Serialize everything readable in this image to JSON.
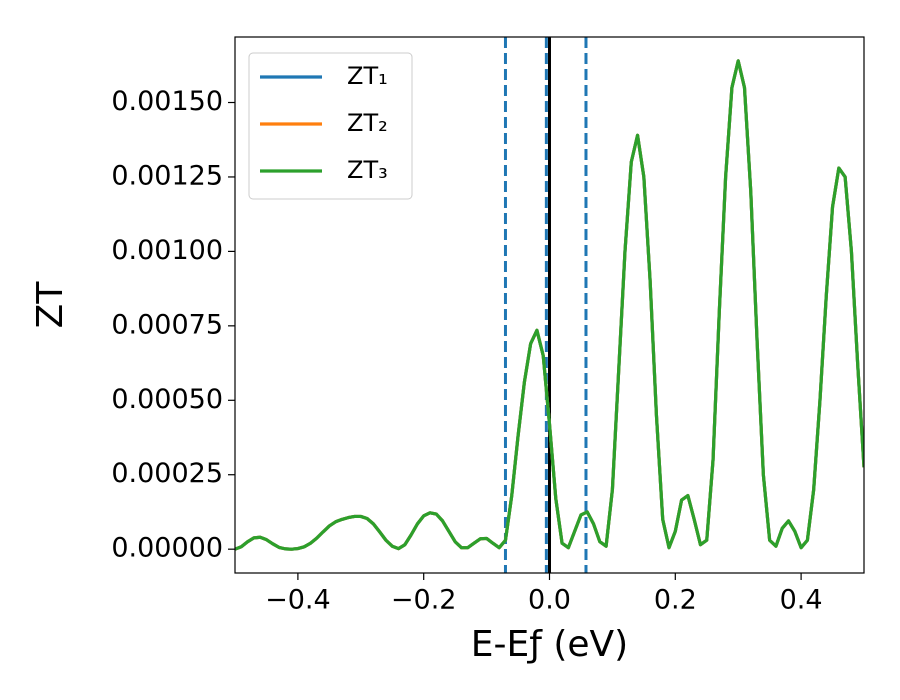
{
  "chart_data": {
    "type": "line",
    "xlabel": "E-Eƒ (eV)",
    "ylabel": "ZT",
    "xlim": [
      -0.5,
      0.5
    ],
    "ylim": [
      -8e-05,
      0.00172
    ],
    "xticks": [
      {
        "value": -0.4,
        "label": "−0.4"
      },
      {
        "value": -0.2,
        "label": "−0.2"
      },
      {
        "value": 0,
        "label": "0.0"
      },
      {
        "value": 0.2,
        "label": "0.2"
      },
      {
        "value": 0.4,
        "label": "0.4"
      }
    ],
    "yticks": [
      {
        "value": 0,
        "label": "0.00000"
      },
      {
        "value": 0.00025,
        "label": "0.00025"
      },
      {
        "value": 0.0005,
        "label": "0.00050"
      },
      {
        "value": 0.00075,
        "label": "0.00075"
      },
      {
        "value": 0.001,
        "label": "0.00100"
      },
      {
        "value": 0.00125,
        "label": "0.00125"
      },
      {
        "value": 0.0015,
        "label": "0.00150"
      }
    ],
    "legend": "upper left",
    "vlines": [
      {
        "x": -0.07,
        "color": "#1f77b4",
        "style": "dashed"
      },
      {
        "x": -0.005,
        "color": "#1f77b4",
        "style": "dashed"
      },
      {
        "x": 0.058,
        "color": "#1f77b4",
        "style": "dashed"
      },
      {
        "x": 0,
        "color": "#000000",
        "style": "solid"
      }
    ],
    "x": [
      -0.5,
      -0.49,
      -0.48,
      -0.47,
      -0.46,
      -0.45,
      -0.44,
      -0.43,
      -0.42,
      -0.41,
      -0.4,
      -0.39,
      -0.38,
      -0.37,
      -0.36,
      -0.35,
      -0.34,
      -0.33,
      -0.32,
      -0.31,
      -0.3,
      -0.29,
      -0.28,
      -0.27,
      -0.26,
      -0.25,
      -0.24,
      -0.23,
      -0.22,
      -0.21,
      -0.2,
      -0.19,
      -0.18,
      -0.17,
      -0.16,
      -0.15,
      -0.14,
      -0.13,
      -0.12,
      -0.11,
      -0.1,
      -0.09,
      -0.08,
      -0.07,
      -0.06,
      -0.05,
      -0.04,
      -0.03,
      -0.02,
      -0.01,
      0,
      0.01,
      0.02,
      0.03,
      0.04,
      0.05,
      0.06,
      0.07,
      0.08,
      0.09,
      0.1,
      0.11,
      0.12,
      0.13,
      0.14,
      0.15,
      0.16,
      0.17,
      0.18,
      0.19,
      0.2,
      0.21,
      0.22,
      0.23,
      0.24,
      0.25,
      0.26,
      0.27,
      0.28,
      0.29,
      0.3,
      0.31,
      0.32,
      0.33,
      0.34,
      0.35,
      0.36,
      0.37,
      0.38,
      0.39,
      0.4,
      0.41,
      0.42,
      0.43,
      0.44,
      0.45,
      0.46,
      0.47,
      0.48,
      0.49,
      0.5
    ],
    "series": [
      {
        "name": "ZT₁",
        "color": "#1f77b4",
        "values": [
          0,
          8e-06,
          2.5e-05,
          3.8e-05,
          4e-05,
          3.2e-05,
          1.8e-05,
          6e-06,
          1e-06,
          0,
          2e-06,
          8e-06,
          2e-05,
          3.7e-05,
          5.8e-05,
          7.8e-05,
          9.2e-05,
          0.0001,
          0.000106,
          0.00011,
          0.00011,
          0.000103,
          8.5e-05,
          5.8e-05,
          3e-05,
          1e-05,
          2e-06,
          1.5e-05,
          4.8e-05,
          8.5e-05,
          0.000112,
          0.000122,
          0.000118,
          9.5e-05,
          6e-05,
          2.5e-05,
          5e-06,
          5e-06,
          2e-05,
          3.5e-05,
          3.6e-05,
          2e-05,
          5e-06,
          3e-05,
          0.00018,
          0.00038,
          0.00056,
          0.00069,
          0.000735,
          0.00065,
          0.00042,
          0.00017,
          2e-05,
          5e-06,
          6e-05,
          0.000115,
          0.000125,
          8.5e-05,
          2.5e-05,
          1e-05,
          0.0002,
          0.0006,
          0.001,
          0.0013,
          0.00139,
          0.00125,
          0.0009,
          0.00045,
          0.0001,
          5e-06,
          6e-05,
          0.000165,
          0.00018,
          0.0001,
          1.5e-05,
          3e-05,
          0.0003,
          0.0008,
          0.00125,
          0.00155,
          0.00164,
          0.00155,
          0.0012,
          0.0007,
          0.00025,
          3e-05,
          1e-05,
          7e-05,
          9.5e-05,
          6e-05,
          5e-06,
          3e-05,
          0.0002,
          0.0005,
          0.00085,
          0.00115,
          0.00128,
          0.00125,
          0.001,
          0.00062,
          0.000275
        ]
      },
      {
        "name": "ZT₂",
        "color": "#ff7f0e",
        "values": [
          0,
          8e-06,
          2.5e-05,
          3.8e-05,
          4e-05,
          3.2e-05,
          1.8e-05,
          6e-06,
          1e-06,
          0,
          2e-06,
          8e-06,
          2e-05,
          3.7e-05,
          5.8e-05,
          7.8e-05,
          9.2e-05,
          0.0001,
          0.000106,
          0.00011,
          0.00011,
          0.000103,
          8.5e-05,
          5.8e-05,
          3e-05,
          1e-05,
          2e-06,
          1.5e-05,
          4.8e-05,
          8.5e-05,
          0.000112,
          0.000122,
          0.000118,
          9.5e-05,
          6e-05,
          2.5e-05,
          5e-06,
          5e-06,
          2e-05,
          3.5e-05,
          3.6e-05,
          2e-05,
          5e-06,
          3e-05,
          0.00018,
          0.00038,
          0.00056,
          0.00069,
          0.000735,
          0.00065,
          0.00042,
          0.00017,
          2e-05,
          5e-06,
          6e-05,
          0.000115,
          0.000125,
          8.5e-05,
          2.5e-05,
          1e-05,
          0.0002,
          0.0006,
          0.001,
          0.0013,
          0.00139,
          0.00125,
          0.0009,
          0.00045,
          0.0001,
          5e-06,
          6e-05,
          0.000165,
          0.00018,
          0.0001,
          1.5e-05,
          3e-05,
          0.0003,
          0.0008,
          0.00125,
          0.00155,
          0.00164,
          0.00155,
          0.0012,
          0.0007,
          0.00025,
          3e-05,
          1e-05,
          7e-05,
          9.5e-05,
          6e-05,
          5e-06,
          3e-05,
          0.0002,
          0.0005,
          0.00085,
          0.00115,
          0.00128,
          0.00125,
          0.001,
          0.00062,
          0.000275
        ]
      },
      {
        "name": "ZT₃",
        "color": "#2ca02c",
        "values": [
          0,
          8e-06,
          2.5e-05,
          3.8e-05,
          4e-05,
          3.2e-05,
          1.8e-05,
          6e-06,
          1e-06,
          0,
          2e-06,
          8e-06,
          2e-05,
          3.7e-05,
          5.8e-05,
          7.8e-05,
          9.2e-05,
          0.0001,
          0.000106,
          0.00011,
          0.00011,
          0.000103,
          8.5e-05,
          5.8e-05,
          3e-05,
          1e-05,
          2e-06,
          1.5e-05,
          4.8e-05,
          8.5e-05,
          0.000112,
          0.000122,
          0.000118,
          9.5e-05,
          6e-05,
          2.5e-05,
          5e-06,
          5e-06,
          2e-05,
          3.5e-05,
          3.6e-05,
          2e-05,
          5e-06,
          3e-05,
          0.00018,
          0.00038,
          0.00056,
          0.00069,
          0.000735,
          0.00065,
          0.00042,
          0.00017,
          2e-05,
          5e-06,
          6e-05,
          0.000115,
          0.000125,
          8.5e-05,
          2.5e-05,
          1e-05,
          0.0002,
          0.0006,
          0.001,
          0.0013,
          0.00139,
          0.00125,
          0.0009,
          0.00045,
          0.0001,
          5e-06,
          6e-05,
          0.000165,
          0.00018,
          0.0001,
          1.5e-05,
          3e-05,
          0.0003,
          0.0008,
          0.00125,
          0.00155,
          0.00164,
          0.00155,
          0.0012,
          0.0007,
          0.00025,
          3e-05,
          1e-05,
          7e-05,
          9.5e-05,
          6e-05,
          5e-06,
          3e-05,
          0.0002,
          0.0005,
          0.00085,
          0.00115,
          0.00128,
          0.00125,
          0.001,
          0.00062,
          0.000275
        ]
      }
    ]
  }
}
